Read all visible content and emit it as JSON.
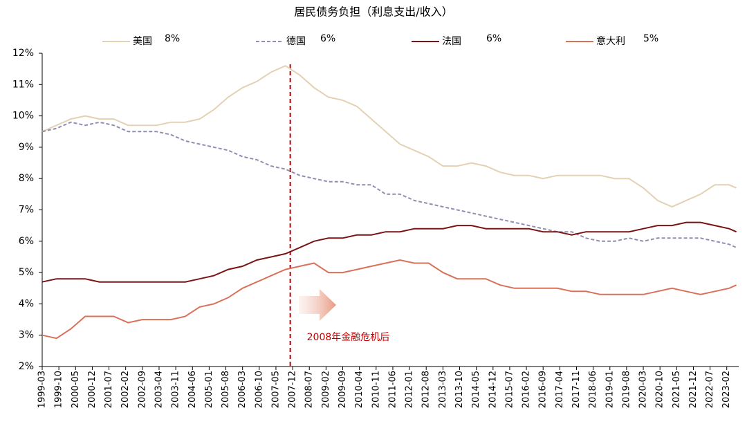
{
  "chart_data": {
    "type": "line",
    "title": "居民债务负担（利息支出/收入）",
    "x": [
      1999.167,
      1999.667,
      2000.167,
      2000.667,
      2001.167,
      2001.667,
      2002.167,
      2002.667,
      2003.167,
      2003.667,
      2004.167,
      2004.667,
      2005.167,
      2005.667,
      2006.167,
      2006.667,
      2007.167,
      2007.667,
      2008.167,
      2008.667,
      2009.167,
      2009.667,
      2010.167,
      2010.667,
      2011.167,
      2011.667,
      2012.167,
      2012.667,
      2013.167,
      2013.667,
      2014.167,
      2014.667,
      2015.167,
      2015.667,
      2016.167,
      2016.667,
      2017.167,
      2017.667,
      2018.167,
      2018.667,
      2019.167,
      2019.667,
      2020.167,
      2020.667,
      2021.167,
      2021.667,
      2022.167,
      2022.667,
      2023.167,
      2023.417
    ],
    "series": [
      {
        "name": "美国",
        "legend_label": "8%",
        "color": "#e3d1b3",
        "dashed": false,
        "values": [
          9.5,
          9.7,
          9.9,
          10.0,
          9.9,
          9.9,
          9.7,
          9.7,
          9.7,
          9.8,
          9.8,
          9.9,
          10.2,
          10.6,
          10.9,
          11.1,
          11.4,
          11.6,
          11.3,
          10.9,
          10.6,
          10.5,
          10.3,
          9.9,
          9.5,
          9.1,
          8.9,
          8.7,
          8.4,
          8.4,
          8.5,
          8.4,
          8.2,
          8.1,
          8.1,
          8.0,
          8.1,
          8.1,
          8.1,
          8.1,
          8.0,
          8.0,
          7.7,
          7.3,
          7.1,
          7.3,
          7.5,
          7.8,
          7.8,
          7.7
        ]
      },
      {
        "name": "德国",
        "legend_label": "6%",
        "color": "#8e8eb2",
        "dashed": true,
        "values": [
          9.5,
          9.6,
          9.8,
          9.7,
          9.8,
          9.7,
          9.5,
          9.5,
          9.5,
          9.4,
          9.2,
          9.1,
          9.0,
          8.9,
          8.7,
          8.6,
          8.4,
          8.3,
          8.1,
          8.0,
          7.9,
          7.9,
          7.8,
          7.8,
          7.5,
          7.5,
          7.3,
          7.2,
          7.1,
          7.0,
          6.9,
          6.8,
          6.7,
          6.6,
          6.5,
          6.4,
          6.3,
          6.3,
          6.1,
          6.0,
          6.0,
          6.1,
          6.0,
          6.1,
          6.1,
          6.1,
          6.1,
          6.0,
          5.9,
          5.8
        ]
      },
      {
        "name": "法国",
        "legend_label": "6%",
        "color": "#7a1414",
        "dashed": false,
        "values": [
          4.7,
          4.8,
          4.8,
          4.8,
          4.7,
          4.7,
          4.7,
          4.7,
          4.7,
          4.7,
          4.7,
          4.8,
          4.9,
          5.1,
          5.2,
          5.4,
          5.5,
          5.6,
          5.8,
          6.0,
          6.1,
          6.1,
          6.2,
          6.2,
          6.3,
          6.3,
          6.4,
          6.4,
          6.4,
          6.5,
          6.5,
          6.4,
          6.4,
          6.4,
          6.4,
          6.3,
          6.3,
          6.2,
          6.3,
          6.3,
          6.3,
          6.3,
          6.4,
          6.5,
          6.5,
          6.6,
          6.6,
          6.5,
          6.4,
          6.3
        ]
      },
      {
        "name": "意大利",
        "legend_label": "5%",
        "color": "#d9705a",
        "dashed": false,
        "values": [
          3.0,
          2.9,
          3.2,
          3.6,
          3.6,
          3.6,
          3.4,
          3.5,
          3.5,
          3.5,
          3.6,
          3.9,
          4.0,
          4.2,
          4.5,
          4.7,
          4.9,
          5.1,
          5.2,
          5.3,
          5.0,
          5.0,
          5.1,
          5.2,
          5.3,
          5.4,
          5.3,
          5.3,
          5.0,
          4.8,
          4.8,
          4.8,
          4.6,
          4.5,
          4.5,
          4.5,
          4.5,
          4.4,
          4.4,
          4.3,
          4.3,
          4.3,
          4.3,
          4.4,
          4.5,
          4.4,
          4.3,
          4.4,
          4.5,
          4.6
        ]
      }
    ],
    "xlim": [
      1999.167,
      2023.5
    ],
    "xticks": [
      {
        "value": 1999.167,
        "label": "1999-03"
      },
      {
        "value": 1999.75,
        "label": "1999-10"
      },
      {
        "value": 2000.333,
        "label": "2000-05"
      },
      {
        "value": 2000.917,
        "label": "2000-12"
      },
      {
        "value": 2001.5,
        "label": "2001-07"
      },
      {
        "value": 2002.083,
        "label": "2002-02"
      },
      {
        "value": 2002.667,
        "label": "2002-09"
      },
      {
        "value": 2003.25,
        "label": "2003-04"
      },
      {
        "value": 2003.833,
        "label": "2003-11"
      },
      {
        "value": 2004.417,
        "label": "2004-06"
      },
      {
        "value": 2005,
        "label": "2005-01"
      },
      {
        "value": 2005.583,
        "label": "2005-08"
      },
      {
        "value": 2006.167,
        "label": "2006-03"
      },
      {
        "value": 2006.75,
        "label": "2006-10"
      },
      {
        "value": 2007.333,
        "label": "2007-05"
      },
      {
        "value": 2007.917,
        "label": "2007-12"
      },
      {
        "value": 2008.5,
        "label": "2008-07"
      },
      {
        "value": 2009.083,
        "label": "2009-02"
      },
      {
        "value": 2009.667,
        "label": "2009-09"
      },
      {
        "value": 2010.25,
        "label": "2010-04"
      },
      {
        "value": 2010.833,
        "label": "2010-11"
      },
      {
        "value": 2011.417,
        "label": "2011-06"
      },
      {
        "value": 2012,
        "label": "2012-01"
      },
      {
        "value": 2012.583,
        "label": "2012-08"
      },
      {
        "value": 2013.167,
        "label": "2013-03"
      },
      {
        "value": 2013.75,
        "label": "2013-10"
      },
      {
        "value": 2014.333,
        "label": "2014-05"
      },
      {
        "value": 2014.917,
        "label": "2014-12"
      },
      {
        "value": 2015.5,
        "label": "2015-07"
      },
      {
        "value": 2016.083,
        "label": "2016-02"
      },
      {
        "value": 2016.667,
        "label": "2016-09"
      },
      {
        "value": 2017.25,
        "label": "2017-04"
      },
      {
        "value": 2017.833,
        "label": "2017-11"
      },
      {
        "value": 2018.417,
        "label": "2018-06"
      },
      {
        "value": 2019,
        "label": "2019-01"
      },
      {
        "value": 2019.583,
        "label": "2019-08"
      },
      {
        "value": 2020.167,
        "label": "2020-03"
      },
      {
        "value": 2020.75,
        "label": "2020-10"
      },
      {
        "value": 2021.333,
        "label": "2021-05"
      },
      {
        "value": 2021.917,
        "label": "2021-12"
      },
      {
        "value": 2022.5,
        "label": "2022-07"
      },
      {
        "value": 2023.083,
        "label": "2023-02"
      }
    ],
    "ylim": [
      2,
      12
    ],
    "yticks": [
      {
        "value": 2,
        "label": "2%"
      },
      {
        "value": 3,
        "label": "3%"
      },
      {
        "value": 4,
        "label": "4%"
      },
      {
        "value": 5,
        "label": "5%"
      },
      {
        "value": 6,
        "label": "6%"
      },
      {
        "value": 7,
        "label": "7%"
      },
      {
        "value": 8,
        "label": "8%"
      },
      {
        "value": 9,
        "label": "9%"
      },
      {
        "value": 10,
        "label": "10%"
      },
      {
        "value": 11,
        "label": "11%"
      },
      {
        "value": 12,
        "label": "12%"
      }
    ],
    "annotation": {
      "x": 2007.833,
      "text": "2008年金融危机后",
      "color": "#c00000"
    }
  }
}
